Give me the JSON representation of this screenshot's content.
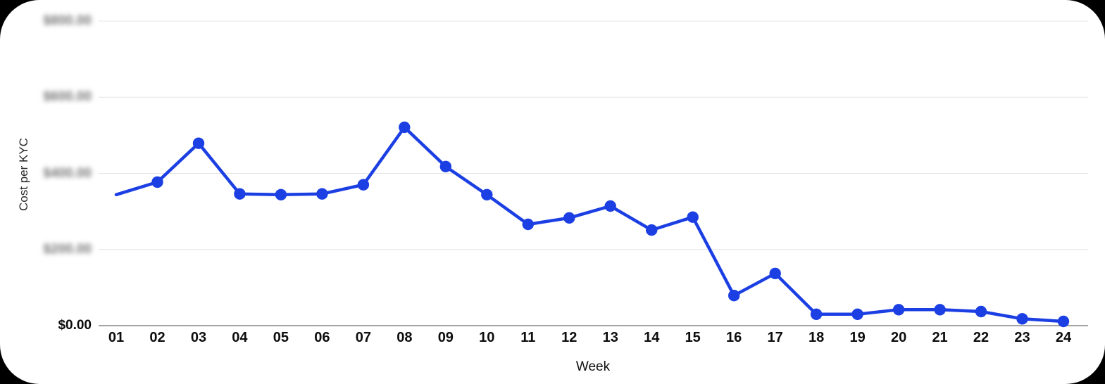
{
  "page": {
    "background_color": "#000000",
    "card_background_color": "#ffffff"
  },
  "chart_data": {
    "type": "line",
    "title": "",
    "xlabel": "Week",
    "ylabel": "Cost per KYC",
    "legend": false,
    "grid": true,
    "categories": [
      "01",
      "02",
      "03",
      "04",
      "05",
      "06",
      "07",
      "08",
      "09",
      "10",
      "11",
      "12",
      "13",
      "14",
      "15",
      "16",
      "17",
      "18",
      "19",
      "20",
      "21",
      "22",
      "23",
      "24"
    ],
    "series": [
      {
        "name": "Cost per KYC",
        "color": "#1b3fe3",
        "values": [
          344,
          377,
          479,
          346,
          344,
          346,
          370,
          521,
          418,
          344,
          266,
          283,
          314,
          251,
          285,
          79,
          137,
          30,
          30,
          42,
          42,
          37,
          18,
          11
        ]
      }
    ],
    "y_axis": {
      "min": 0,
      "max": 800,
      "ticks": [
        {
          "value": 0,
          "label": "$0.00",
          "blurred": false
        },
        {
          "value": 200,
          "label": "$200.00",
          "blurred": true
        },
        {
          "value": 400,
          "label": "$400.00",
          "blurred": true
        },
        {
          "value": 600,
          "label": "$600.00",
          "blurred": true
        },
        {
          "value": 800,
          "label": "$800.00",
          "blurred": true
        }
      ],
      "note": "Upper y-axis tick labels are blurred/redacted in the screenshot; only $0.00 is legible."
    },
    "marker_on_first_point": false,
    "marker_radius": 8.2,
    "colors": {
      "line": "#1b3fe3",
      "gridline": "#e4e4e4",
      "axis_line": "#a3a3a3",
      "tick_text": "#0d0d0d"
    }
  }
}
